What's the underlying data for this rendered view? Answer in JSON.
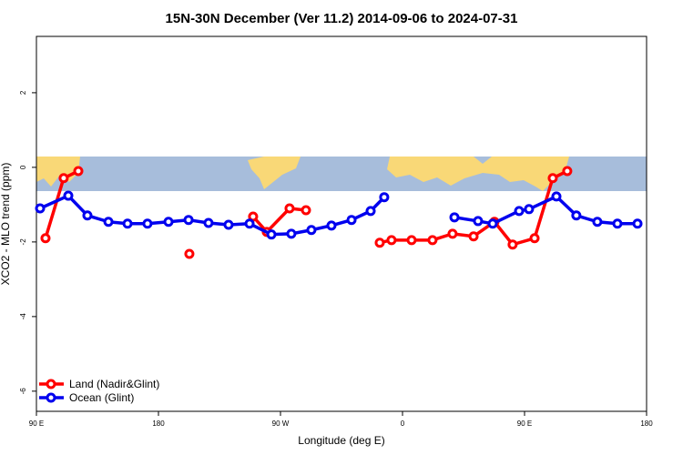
{
  "chart_data": {
    "type": "line",
    "title": "15N-30N December (Ver 11.2)   2014-09-06 to 2024-07-31",
    "x_label": "Longitude (deg E)",
    "y_label": "XCO2 - MLO trend (ppm)",
    "xlim": [
      90,
      540
    ],
    "xticks": [
      {
        "value": 90,
        "label": "90 E"
      },
      180,
      {
        "value": 270,
        "label": "90 W"
      },
      {
        "value": 360,
        "label": "0"
      },
      {
        "value": 450,
        "label": "90 E"
      },
      {
        "value": 540,
        "label": "180"
      }
    ],
    "ylim": [
      -6.54,
      3.51
    ],
    "yticks": [
      2,
      0,
      -2,
      -4,
      -6
    ],
    "legend": "bottom-left",
    "series": [
      {
        "name": "Land (Nadir&Glint)",
        "color": "#ff0000",
        "x": [
          96.7,
          110.1,
          120.9,
          null,
          202.8,
          null,
          249.8,
          259.9,
          276.7,
          288.8,
          null,
          343.2,
          351.9,
          366.7,
          382.1,
          396.9,
          412.4,
          427.8,
          441.2,
          457.4,
          470.8,
          481.5
        ],
        "values": [
          -1.9,
          -0.29,
          -0.1,
          null,
          -2.32,
          null,
          -1.32,
          -1.73,
          -1.1,
          -1.15,
          null,
          -2.02,
          -1.95,
          -1.95,
          -1.95,
          -1.78,
          -1.85,
          -1.46,
          -2.07,
          -1.9,
          -0.29,
          -0.1
        ]
      },
      {
        "name": "Ocean (Glint)",
        "color": "#0000ee",
        "x": [
          92.7,
          113.5,
          127.6,
          143.1,
          157.2,
          171.9,
          187.4,
          202.2,
          216.9,
          231.7,
          247.2,
          263.3,
          278.0,
          292.8,
          307.6,
          322.4,
          336.5,
          346.5,
          null,
          398.3,
          415.7,
          426.5,
          446.0,
          453.3,
          473.5,
          488.2,
          503.7,
          518.5,
          533.3
        ],
        "values": [
          -1.1,
          -0.76,
          -1.29,
          -1.46,
          -1.51,
          -1.51,
          -1.46,
          -1.41,
          -1.49,
          -1.54,
          -1.51,
          -1.8,
          -1.78,
          -1.68,
          -1.56,
          -1.41,
          -1.17,
          -0.8,
          null,
          -1.34,
          -1.44,
          -1.51,
          -1.17,
          -1.12,
          -0.78,
          -1.29,
          -1.46,
          -1.51,
          -1.51
        ]
      }
    ]
  }
}
